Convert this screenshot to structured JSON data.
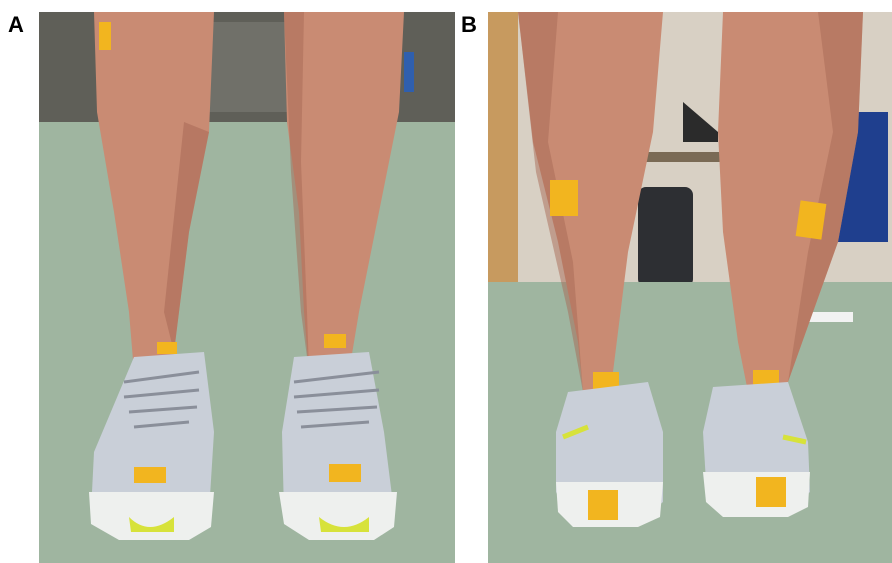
{
  "figure": {
    "panels": [
      {
        "label": "A",
        "view": "front-view-legs-photo"
      },
      {
        "label": "B",
        "view": "back-view-legs-photo"
      }
    ],
    "colors": {
      "floor": "#9fb5a0",
      "skin": "#c98b73",
      "skin_shadow": "#a86a55",
      "tape": "#f2b51f",
      "shoe_upper": "#c9cfd8",
      "shoe_sole": "#eef0ee",
      "shoe_accent": "#d7e23a",
      "wall": "#d8d0c4"
    }
  }
}
